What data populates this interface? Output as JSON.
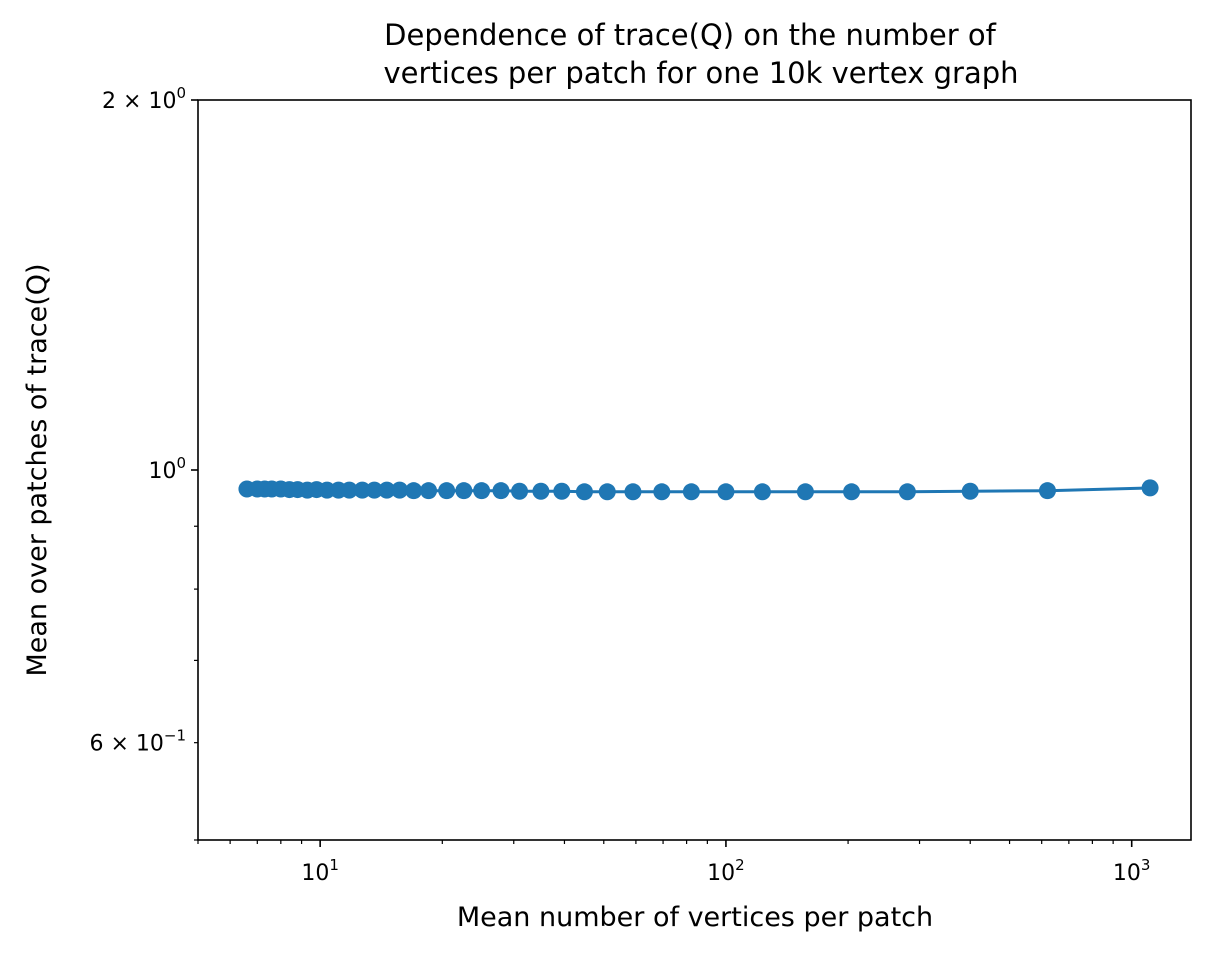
{
  "chart_data": {
    "type": "line",
    "title_line1": "Dependence of trace(Q) on the number of",
    "title_line2": "vertices per patch for one 10k vertex graph",
    "xlabel": "Mean number of vertices per patch",
    "ylabel": "Mean over patches of trace(Q)",
    "x_scale": "log",
    "y_scale": "log",
    "xlim": [
      5.0,
      1400
    ],
    "ylim": [
      0.5,
      2.0
    ],
    "x_major_ticks": [
      {
        "value": 10,
        "base": "10",
        "exp": "1"
      },
      {
        "value": 100,
        "base": "10",
        "exp": "2"
      },
      {
        "value": 1000,
        "base": "10",
        "exp": "3"
      }
    ],
    "y_labeled_ticks": [
      {
        "value": 2.0,
        "mant": "2",
        "base": "10",
        "exp": "0"
      },
      {
        "value": 1.0,
        "mant": "",
        "base": "10",
        "exp": "0"
      },
      {
        "value": 0.6,
        "mant": "6",
        "base": "10",
        "exp": "−1"
      }
    ],
    "grid": false,
    "line_color": "#1f77b4",
    "series": [
      {
        "x": [
          6.6,
          7.0,
          7.3,
          7.6,
          8.0,
          8.4,
          8.8,
          9.3,
          9.8,
          10.4,
          11.1,
          11.8,
          12.7,
          13.6,
          14.6,
          15.7,
          17.0,
          18.5,
          20.5,
          22.6,
          25.0,
          27.9,
          31.0,
          35.0,
          39.4,
          44.8,
          51.0,
          59.0,
          69.5,
          82.2,
          100,
          123,
          157,
          204,
          280,
          400,
          620,
          1110
        ],
        "y": [
          0.965,
          0.965,
          0.965,
          0.965,
          0.965,
          0.964,
          0.964,
          0.963,
          0.964,
          0.963,
          0.963,
          0.963,
          0.963,
          0.963,
          0.963,
          0.963,
          0.962,
          0.962,
          0.962,
          0.962,
          0.962,
          0.962,
          0.961,
          0.961,
          0.961,
          0.96,
          0.96,
          0.96,
          0.96,
          0.96,
          0.96,
          0.96,
          0.96,
          0.96,
          0.96,
          0.961,
          0.962,
          0.967
        ]
      }
    ]
  }
}
